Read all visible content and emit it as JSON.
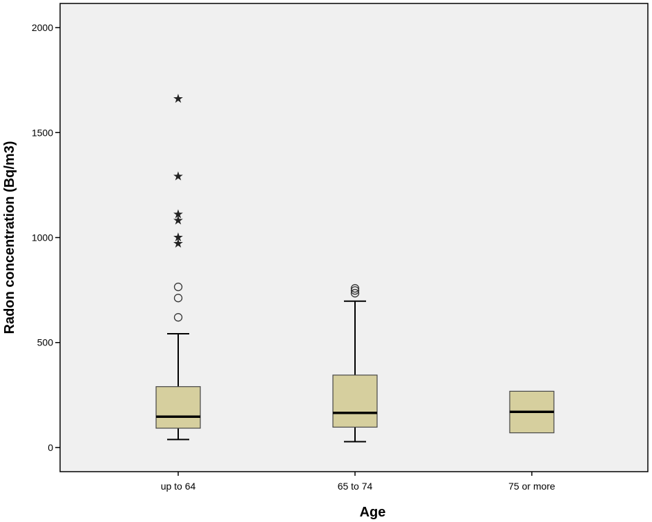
{
  "chart_data": {
    "type": "boxplot",
    "title": "",
    "xlabel": "Age",
    "ylabel": "Radon concentration (Bq/m3)",
    "ylim": [
      -115,
      2115
    ],
    "yticks": [
      0,
      500,
      1000,
      1500,
      2000
    ],
    "grid": false,
    "legend": "none",
    "colors": {
      "plot_bg": "#f0f0f0",
      "box_fill": "#d6cf9e",
      "stroke": "#000000"
    },
    "categories": [
      "up to 64",
      "65 to 74",
      "75 or more"
    ],
    "boxes": [
      {
        "category": "up to 64",
        "whisker_low": 38,
        "q1": 92,
        "median": 147,
        "q3": 290,
        "whisker_high": 542,
        "outliers": [
          620,
          712,
          765
        ],
        "extremes": [
          975,
          1005,
          1085,
          1115,
          1295,
          1665
        ]
      },
      {
        "category": "65 to 74",
        "whisker_low": 28,
        "q1": 97,
        "median": 165,
        "q3": 345,
        "whisker_high": 697,
        "outliers": [
          735,
          748,
          758
        ],
        "extremes": []
      },
      {
        "category": "75 or more",
        "whisker_low": null,
        "q1": 70,
        "median": 170,
        "q3": 268,
        "whisker_high": null,
        "outliers": [],
        "extremes": []
      }
    ]
  }
}
